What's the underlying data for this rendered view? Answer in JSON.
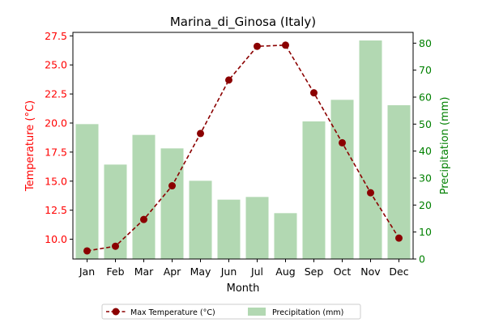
{
  "chart_data": {
    "type": "bar",
    "title": "Marina_di_Ginosa (Italy)",
    "xlabel": "Month",
    "categories": [
      "Jan",
      "Feb",
      "Mar",
      "Apr",
      "May",
      "Jun",
      "Jul",
      "Aug",
      "Sep",
      "Oct",
      "Nov",
      "Dec"
    ],
    "y_left": {
      "label": "Temperature (°C)",
      "ylim": [
        8.3,
        27.8
      ],
      "ticks": [
        "10.0",
        "12.5",
        "15.0",
        "17.5",
        "20.0",
        "22.5",
        "25.0",
        "27.5"
      ],
      "color": "#ff0000"
    },
    "y_right": {
      "label": "Precipitation (mm)",
      "ylim": [
        0,
        84
      ],
      "ticks": [
        "0",
        "10",
        "20",
        "30",
        "40",
        "50",
        "60",
        "70",
        "80"
      ],
      "color": "#008000"
    },
    "series": [
      {
        "name": "Max Temperature (°C)",
        "type": "line",
        "axis": "left",
        "color": "#8b0000",
        "style": "dashed",
        "marker": "circle",
        "values": [
          9.0,
          9.4,
          11.7,
          14.6,
          19.1,
          23.7,
          26.6,
          26.7,
          22.6,
          18.3,
          14.0,
          10.1
        ]
      },
      {
        "name": "Precipitation (mm)",
        "type": "bar",
        "axis": "right",
        "color": "#b2d8b2",
        "values": [
          50,
          35,
          46,
          41,
          29,
          22,
          23,
          17,
          51,
          59,
          81,
          57
        ]
      }
    ],
    "legend": {
      "placement": "bottom-center",
      "items": [
        "Max Temperature (°C)",
        "Precipitation (mm)"
      ]
    },
    "grid": false
  }
}
